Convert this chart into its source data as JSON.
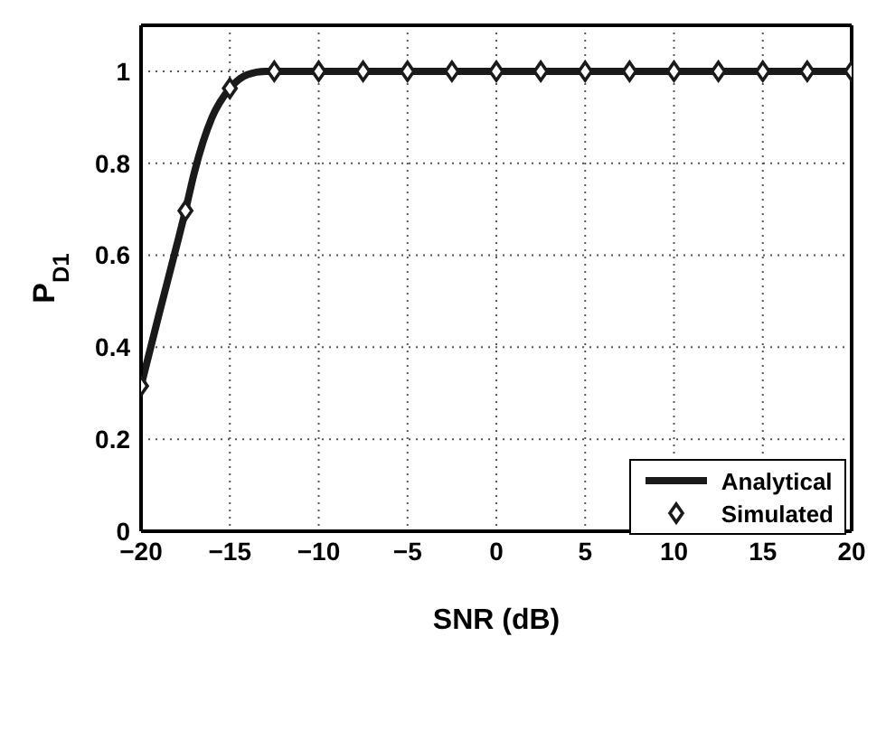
{
  "chart_data": {
    "type": "line",
    "xlabel": "SNR (dB)",
    "ylabel": "P$_{D1}$",
    "xlim": [
      -20,
      20
    ],
    "xticks": [
      -20,
      -15,
      -10,
      -5,
      0,
      5,
      10,
      15,
      20
    ],
    "ylim": [
      0,
      1.1
    ],
    "yticks": [
      0,
      0.2,
      0.4,
      0.6,
      0.8,
      1
    ],
    "grid": true,
    "legend": "bottom right",
    "series": [
      {
        "name": "Analytical",
        "type": "line",
        "color": "#1a1a1a",
        "marker": "none",
        "line_style": "solid",
        "x": [
          -20,
          -19,
          -18,
          -17.5,
          -17,
          -16,
          -15,
          -14,
          -13,
          -12.5,
          -10,
          20
        ],
        "values": [
          0.316,
          0.47,
          0.62,
          0.697,
          0.78,
          0.9,
          0.963,
          0.993,
          1,
          1,
          1,
          1
        ]
      },
      {
        "name": "Simulated",
        "type": "scatter",
        "color": "#1a1a1a",
        "marker": "diamond",
        "x": [
          -20,
          -17.5,
          -15,
          -12.5,
          -10,
          -7.5,
          -5,
          -2.5,
          0,
          2.5,
          5,
          7.5,
          10,
          12.5,
          15,
          17.5,
          20
        ],
        "values": [
          0.316,
          0.697,
          0.963,
          1,
          1,
          1,
          1,
          1,
          1,
          1,
          1,
          1,
          1,
          1,
          1,
          1,
          1
        ]
      }
    ]
  }
}
